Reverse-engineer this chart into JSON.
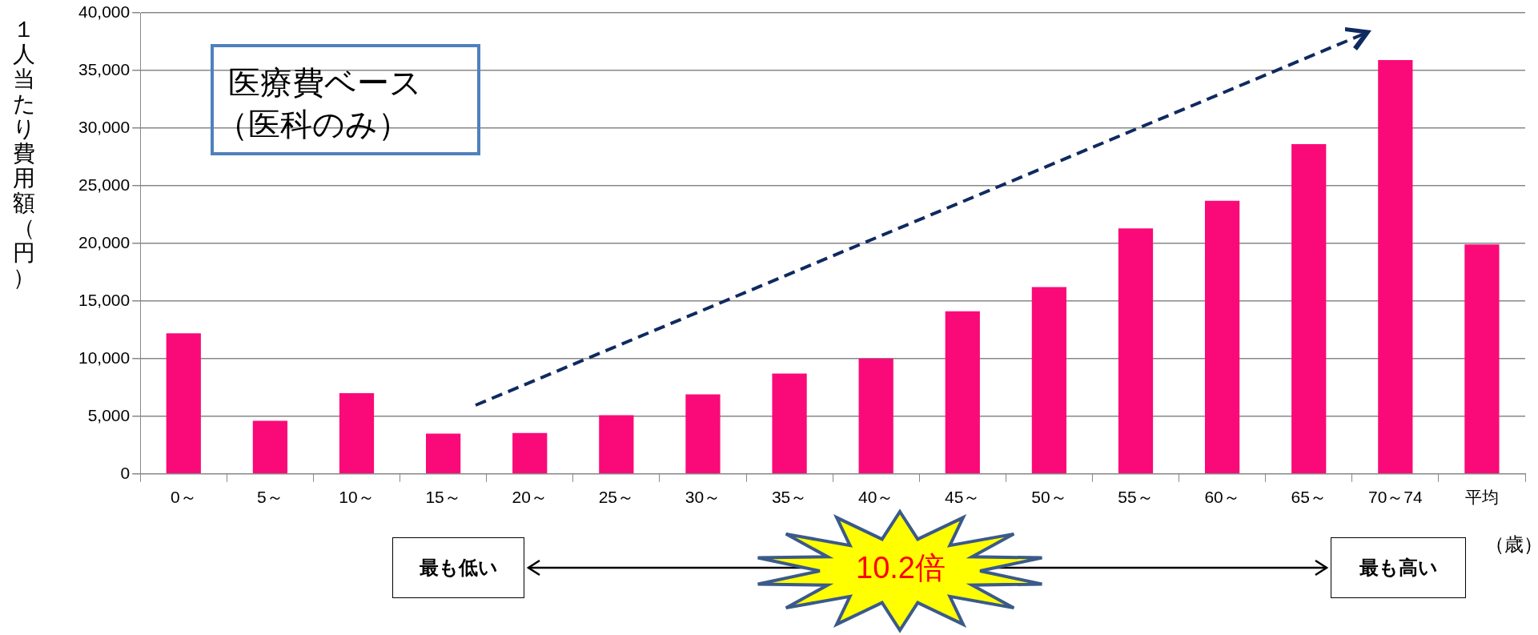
{
  "chart_data": {
    "type": "bar",
    "categories": [
      "0～",
      "5～",
      "10～",
      "15～",
      "20～",
      "25～",
      "30～",
      "35～",
      "40～",
      "45～",
      "50～",
      "55～",
      "60～",
      "65～",
      "70～74",
      "平均"
    ],
    "values": [
      12200,
      4600,
      7000,
      3500,
      3550,
      5100,
      6900,
      8700,
      10000,
      14100,
      16200,
      21300,
      23700,
      28600,
      35900,
      19900
    ],
    "color": "#fa0a78",
    "ylabel": "１人当たり費用額（円）",
    "xlabel": "（歳）",
    "ylim": [
      0,
      40000
    ],
    "yticks": [
      {
        "value": 0,
        "label": "0"
      },
      {
        "value": 5000,
        "label": "5,000"
      },
      {
        "value": 10000,
        "label": "10,000"
      },
      {
        "value": 15000,
        "label": "15,000"
      },
      {
        "value": 20000,
        "label": "20,000"
      },
      {
        "value": 25000,
        "label": "25,000"
      },
      {
        "value": 30000,
        "label": "30,000"
      },
      {
        "value": 35000,
        "label": "35,000"
      },
      {
        "value": 40000,
        "label": "40,000"
      }
    ],
    "grid": "y",
    "legend": false,
    "annotations": [
      "医療費ベース",
      "（医科のみ）",
      "最も低い",
      "最も高い",
      "10.2倍"
    ]
  }
}
